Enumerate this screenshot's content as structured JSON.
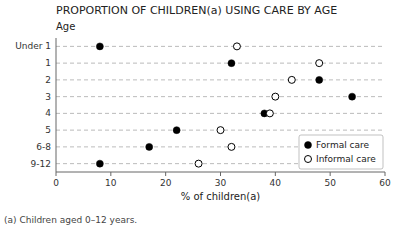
{
  "chart_data": {
    "type": "dot",
    "orientation": "horizontal",
    "title": "PROPORTION OF CHILDREN(a) USING CARE BY AGE",
    "x_label": "% of children(a)",
    "y_label": "Age",
    "annotations": [
      "(a) Children aged 0–12 years."
    ],
    "categories": [
      "Under 1",
      "1",
      "2",
      "3",
      "4",
      "5",
      "6-8",
      "9-12"
    ],
    "series": [
      {
        "name": "Formal care",
        "color": "#000000",
        "marker": "circle",
        "values": [
          8,
          32,
          48,
          54,
          38,
          22,
          17,
          8
        ]
      },
      {
        "name": "Informal care",
        "color": "#000000",
        "marker": "open-circle",
        "values": [
          33,
          48,
          43,
          40,
          39,
          30,
          32,
          26
        ]
      }
    ],
    "xlim": [
      0,
      60
    ],
    "xticks": [
      0,
      10,
      20,
      30,
      40,
      50,
      60
    ],
    "grid": true,
    "line_style": "dashed",
    "legend": "lower right"
  }
}
